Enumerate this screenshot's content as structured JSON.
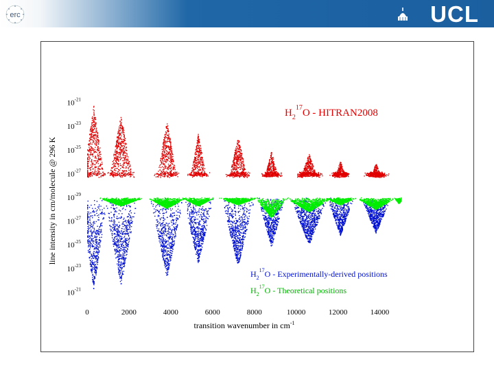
{
  "header": {
    "left_logo_text": "erc",
    "right_logo_text": "UCL"
  },
  "chart_data": {
    "type": "scatter",
    "title": "",
    "xlabel": "transition wavenumber in cm-1",
    "xlabel_main": "transition wavenumber in cm",
    "xlabel_sup": "-1",
    "ylabel": "line intensity in cm/molecule @ 296 K",
    "xlim": [
      0,
      15000
    ],
    "x_ticks": [
      "0",
      "2000",
      "4000",
      "6000",
      "8000",
      "10000",
      "12000",
      "14000"
    ],
    "y_ticks_top": [
      {
        "base": "10",
        "exp": "-21"
      },
      {
        "base": "10",
        "exp": "-23"
      },
      {
        "base": "10",
        "exp": "-25"
      },
      {
        "base": "10",
        "exp": "-27"
      },
      {
        "base": "10",
        "exp": "-29"
      }
    ],
    "y_ticks_bottom": [
      {
        "base": "10",
        "exp": "-27"
      },
      {
        "base": "10",
        "exp": "-25"
      },
      {
        "base": "10",
        "exp": "-23"
      },
      {
        "base": "10",
        "exp": "-21"
      }
    ],
    "mirror_axis_note": "Upper panel intensity increases upward from 1e-29; lower panel intensity increases downward from 1e-29",
    "series": [
      {
        "name": "H2 17O - HITRAN2008",
        "label_parts": {
          "pre": "H",
          "sub": "2",
          "sup": "17",
          "post": "O - HITRAN2008"
        },
        "color": "#e00000",
        "panel": "top",
        "bands": [
          {
            "center": 300,
            "width": 800,
            "peak_exp": -21.2
          },
          {
            "center": 1600,
            "width": 900,
            "peak_exp": -22.0
          },
          {
            "center": 3800,
            "width": 800,
            "peak_exp": -22.5
          },
          {
            "center": 5300,
            "width": 700,
            "peak_exp": -23.6
          },
          {
            "center": 7200,
            "width": 800,
            "peak_exp": -23.8
          },
          {
            "center": 8800,
            "width": 700,
            "peak_exp": -25.1
          },
          {
            "center": 10600,
            "width": 900,
            "peak_exp": -25.3
          },
          {
            "center": 12100,
            "width": 700,
            "peak_exp": -25.9
          },
          {
            "center": 13800,
            "width": 800,
            "peak_exp": -26.1
          }
        ]
      },
      {
        "name": "H2 17O - Experimentally-derived positions",
        "label_parts": {
          "pre": "H",
          "sub": "2",
          "sup": "17",
          "post": "O - Experimentally-derived positions"
        },
        "color": "#0010d0",
        "panel": "bottom",
        "bands": [
          {
            "center": 300,
            "width": 800,
            "peak_exp": -21.2
          },
          {
            "center": 1600,
            "width": 1000,
            "peak_exp": -21.6
          },
          {
            "center": 3800,
            "width": 1000,
            "peak_exp": -22.2
          },
          {
            "center": 5300,
            "width": 900,
            "peak_exp": -23.4
          },
          {
            "center": 7200,
            "width": 1000,
            "peak_exp": -23.2
          },
          {
            "center": 8800,
            "width": 800,
            "peak_exp": -24.8
          },
          {
            "center": 10600,
            "width": 1100,
            "peak_exp": -25.0
          },
          {
            "center": 12100,
            "width": 800,
            "peak_exp": -25.8
          },
          {
            "center": 13800,
            "width": 900,
            "peak_exp": -26.0
          }
        ]
      },
      {
        "name": "H2 17O - Theoretical positions",
        "label_parts": {
          "pre": "H",
          "sub": "2",
          "sup": "17",
          "post": "O - Theoretical positions"
        },
        "color": "#00ee00",
        "panel": "bottom",
        "bands": [
          {
            "center": 1600,
            "width": 1400,
            "peak_exp": -28.3
          },
          {
            "center": 3800,
            "width": 1200,
            "peak_exp": -28.1
          },
          {
            "center": 5300,
            "width": 1000,
            "peak_exp": -28.3
          },
          {
            "center": 7200,
            "width": 1200,
            "peak_exp": -28.4
          },
          {
            "center": 8800,
            "width": 1000,
            "peak_exp": -27.3
          },
          {
            "center": 10600,
            "width": 1400,
            "peak_exp": -27.8
          },
          {
            "center": 12100,
            "width": 1000,
            "peak_exp": -28.4
          },
          {
            "center": 13800,
            "width": 1200,
            "peak_exp": -28.0
          },
          {
            "center": 14900,
            "width": 300,
            "peak_exp": -28.5
          }
        ]
      }
    ],
    "grid": false,
    "legend_placement": "top-right and bottom-right"
  }
}
